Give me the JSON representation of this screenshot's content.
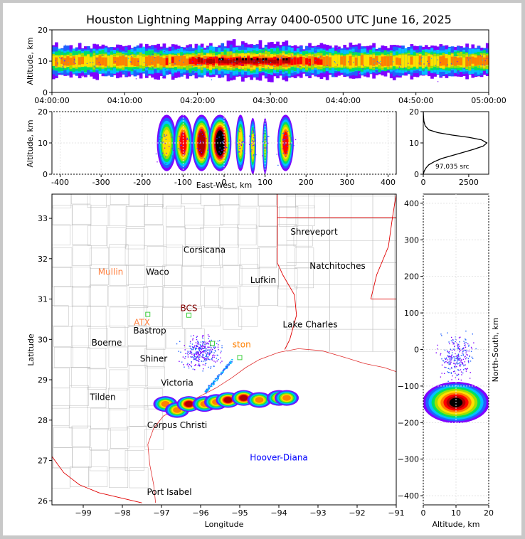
{
  "title": "Houston Lightning Mapping Array 0400-0500 UTC June 16, 2025",
  "colors": {
    "background": "#ffffff",
    "frame": "#c8c8c8",
    "coast": "#e03030",
    "counties": "#b8b8b8",
    "states": "#e00000",
    "site_marker": "#40d040"
  },
  "colormap": [
    "#8000ff",
    "#2060ff",
    "#00c0ff",
    "#00e060",
    "#a0e000",
    "#ffe000",
    "#ff8000",
    "#ff0000",
    "#b00000",
    "#000000",
    "#ffffff"
  ],
  "chart_data": [
    {
      "id": "time-altitude",
      "type": "heatmap",
      "xlabel": "",
      "ylabel": "Altitude, km",
      "x_ticks": [
        "04:00:00",
        "04:10:00",
        "04:20:00",
        "04:30:00",
        "04:40:00",
        "04:50:00",
        "05:00:00"
      ],
      "y_ticks": [
        0,
        10,
        20
      ],
      "xlim": [
        "04:00:00",
        "05:00:00"
      ],
      "ylim": [
        0,
        20
      ],
      "description_of_density": "continuous band of sources centered near 10 km from 04:00 to 05:00, densest 04:20-04:35"
    },
    {
      "id": "eastwest-altitude",
      "type": "heatmap",
      "xlabel": "East-West, km",
      "ylabel": "Altitude, km",
      "x_ticks": [
        -400,
        -300,
        -200,
        -100,
        0,
        100,
        200,
        300,
        400
      ],
      "y_ticks": [
        0,
        10,
        20
      ],
      "xlim": [
        -420,
        420
      ],
      "ylim": [
        0,
        20
      ],
      "clusters_km": [
        {
          "x": -140,
          "w": 30,
          "z": 10,
          "intensity": 2
        },
        {
          "x": -100,
          "w": 30,
          "z": 10,
          "intensity": 3
        },
        {
          "x": -55,
          "w": 30,
          "z": 10,
          "intensity": 4
        },
        {
          "x": -10,
          "w": 35,
          "z": 10,
          "intensity": 5
        },
        {
          "x": 40,
          "w": 15,
          "z": 10,
          "intensity": 2
        },
        {
          "x": 70,
          "w": 10,
          "z": 9,
          "intensity": 2
        },
        {
          "x": 100,
          "w": 8,
          "z": 9,
          "intensity": 1
        },
        {
          "x": 150,
          "w": 25,
          "z": 10,
          "intensity": 3
        }
      ]
    },
    {
      "id": "altitude-histogram",
      "type": "line",
      "annotation": "97,035 src",
      "x_ticks": [
        0,
        2500
      ],
      "y_ticks": [
        0,
        10,
        20
      ],
      "xlim": [
        0,
        3600
      ],
      "ylim": [
        0,
        20
      ],
      "x": [
        0,
        50,
        150,
        300,
        600,
        1000,
        1600,
        2200,
        2800,
        3300,
        3500,
        3200,
        2500,
        1600,
        800,
        300,
        100,
        30,
        10,
        0
      ],
      "y": [
        0,
        1,
        2,
        3,
        4,
        5,
        6,
        7,
        8,
        9,
        10,
        11,
        11.8,
        12.5,
        13.3,
        14.2,
        15.5,
        17,
        18.5,
        20
      ]
    },
    {
      "id": "plan-view",
      "type": "scatter",
      "xlabel": "Longitude",
      "ylabel": "Latitude",
      "x_ticks": [
        -99,
        -98,
        -97,
        -96,
        -95,
        -94,
        -93,
        -92,
        -91
      ],
      "y_ticks": [
        26,
        27,
        28,
        29,
        30,
        31,
        32,
        33
      ],
      "xlim": [
        -99.8,
        -91
      ],
      "ylim": [
        25.9,
        33.6
      ],
      "cities": [
        {
          "name": "Shreveport",
          "lon": -93.1,
          "lat": 32.6,
          "color": "#000000"
        },
        {
          "name": "Corsicana",
          "lon": -95.9,
          "lat": 32.15,
          "color": "#000000"
        },
        {
          "name": "Mullin",
          "lon": -98.3,
          "lat": 31.6,
          "color": "#ff8040"
        },
        {
          "name": "Waco",
          "lon": -97.1,
          "lat": 31.6,
          "color": "#000000"
        },
        {
          "name": "Natchitoches",
          "lon": -92.5,
          "lat": 31.75,
          "color": "#000000"
        },
        {
          "name": "Lufkin",
          "lon": -94.4,
          "lat": 31.4,
          "color": "#000000"
        },
        {
          "name": "BCS",
          "lon": -96.3,
          "lat": 30.7,
          "color": "#800000"
        },
        {
          "name": "ATX",
          "lon": -97.5,
          "lat": 30.35,
          "color": "#ff8040"
        },
        {
          "name": "Bastrop",
          "lon": -97.3,
          "lat": 30.15,
          "color": "#000000"
        },
        {
          "name": "Lake Charles",
          "lon": -93.2,
          "lat": 30.3,
          "color": "#000000"
        },
        {
          "name": "Boerne",
          "lon": -98.4,
          "lat": 29.85,
          "color": "#000000"
        },
        {
          "name": "ston",
          "lon": -94.95,
          "lat": 29.8,
          "color": "#ff8000"
        },
        {
          "name": "Shiner",
          "lon": -97.2,
          "lat": 29.45,
          "color": "#000000"
        },
        {
          "name": "Victoria",
          "lon": -96.6,
          "lat": 28.85,
          "color": "#000000"
        },
        {
          "name": "Tilden",
          "lon": -98.5,
          "lat": 28.5,
          "color": "#000000"
        },
        {
          "name": "Corpus Christi",
          "lon": -96.6,
          "lat": 27.8,
          "color": "#000000"
        },
        {
          "name": "Hoover-Diana",
          "lon": -94.0,
          "lat": 27.0,
          "color": "#0000ff"
        },
        {
          "name": "Port Isabel",
          "lon": -96.8,
          "lat": 26.15,
          "color": "#000000"
        }
      ],
      "storm_line_lonlat": [
        [
          -96.9,
          28.4
        ],
        [
          -96.6,
          28.25
        ],
        [
          -96.3,
          28.4
        ],
        [
          -95.9,
          28.4
        ],
        [
          -95.6,
          28.45
        ],
        [
          -95.3,
          28.5
        ],
        [
          -94.9,
          28.55
        ],
        [
          -94.5,
          28.5
        ],
        [
          -94.0,
          28.55
        ],
        [
          -93.8,
          28.55
        ]
      ]
    },
    {
      "id": "altitude-northsouth",
      "type": "heatmap",
      "xlabel": "Altitude, km",
      "ylabel": "North-South, km",
      "x_ticks": [
        0,
        10,
        20
      ],
      "y_ticks": [
        -400,
        -300,
        -200,
        -100,
        0,
        100,
        200,
        300,
        400
      ],
      "xlim": [
        0,
        20
      ],
      "ylim": [
        -425,
        425
      ],
      "core": {
        "z": 10,
        "y": -145
      }
    }
  ]
}
